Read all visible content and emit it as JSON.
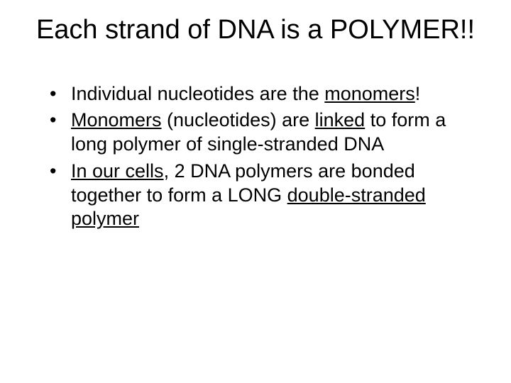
{
  "slide": {
    "title": "Each strand of DNA is a POLYMER!!",
    "bullets": [
      {
        "pre": "Individual nucleotides are the ",
        "u1": "monomers",
        "post": "!"
      },
      {
        "u1": "Monomers",
        "mid1": " (nucleotides) are ",
        "u2": "linked",
        "post": " to form a long polymer of single-stranded DNA"
      },
      {
        "u1": "In our cells",
        "mid1": ", 2 DNA polymers are bonded together to form a LONG ",
        "u2": "double-stranded polymer"
      }
    ],
    "colors": {
      "background": "#ffffff",
      "text": "#000000"
    },
    "fonts": {
      "title_size": 38,
      "body_size": 27,
      "family": "Arial"
    }
  }
}
